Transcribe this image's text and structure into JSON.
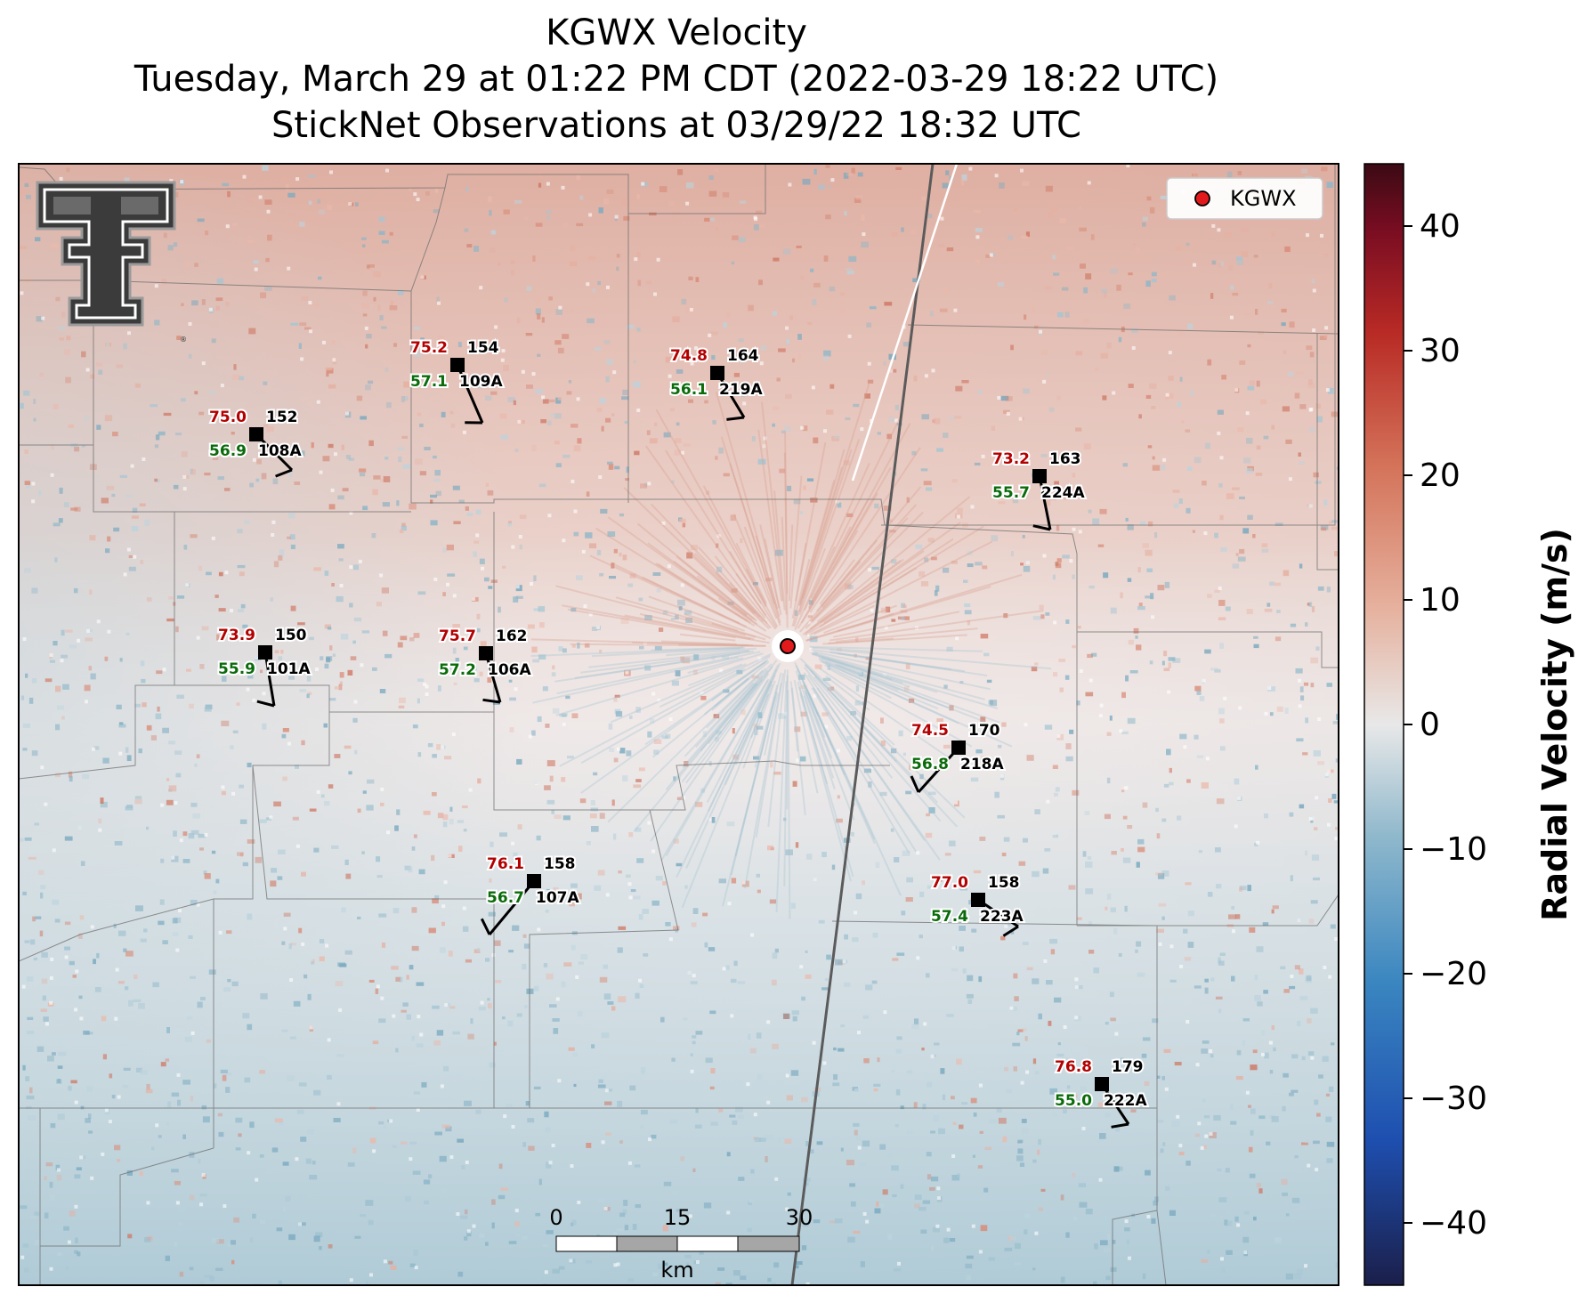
{
  "title": {
    "line1": "KGWX Velocity",
    "line2": "Tuesday, March 29 at 01:22 PM CDT (2022-03-29 18:22 UTC)",
    "line3": "StickNet Observations at 03/29/22 18:32 UTC"
  },
  "legend": {
    "label": "KGWX",
    "marker_color": "#e31a1c"
  },
  "colorbar": {
    "label": "Radial Velocity (m/s)",
    "range": [
      -45,
      45
    ],
    "ticks": [
      "40",
      "30",
      "20",
      "10",
      "0",
      "−10",
      "−20",
      "−30",
      "−40"
    ],
    "colors": [
      "#1b1f4a",
      "#1e4fb0",
      "#3a86c0",
      "#8fb8cc",
      "#e8e8e8",
      "#e6b3a0",
      "#d4735a",
      "#b82a25",
      "#7a0d22",
      "#3b0a14"
    ]
  },
  "scalebar": {
    "ticks": [
      "0",
      "15",
      "30"
    ],
    "unit": "km"
  },
  "logo": {
    "name": "texas-tech-double-t-logo"
  },
  "stations": [
    {
      "id": "108A",
      "temp": "75.0",
      "dew": "56.9",
      "dir": "152"
    },
    {
      "id": "109A",
      "temp": "75.2",
      "dew": "57.1",
      "dir": "154"
    },
    {
      "id": "219A",
      "temp": "74.8",
      "dew": "56.1",
      "dir": "164"
    },
    {
      "id": "224A",
      "temp": "73.2",
      "dew": "55.7",
      "dir": "163"
    },
    {
      "id": "101A",
      "temp": "73.9",
      "dew": "55.9",
      "dir": "150"
    },
    {
      "id": "106A",
      "temp": "75.7",
      "dew": "57.2",
      "dir": "162"
    },
    {
      "id": "218A",
      "temp": "74.5",
      "dew": "56.8",
      "dir": "170"
    },
    {
      "id": "107A",
      "temp": "76.1",
      "dew": "56.7",
      "dir": "158"
    },
    {
      "id": "223A",
      "temp": "77.0",
      "dew": "57.4",
      "dir": "158"
    },
    {
      "id": "222A",
      "temp": "76.8",
      "dew": "55.0",
      "dir": "179"
    }
  ]
}
